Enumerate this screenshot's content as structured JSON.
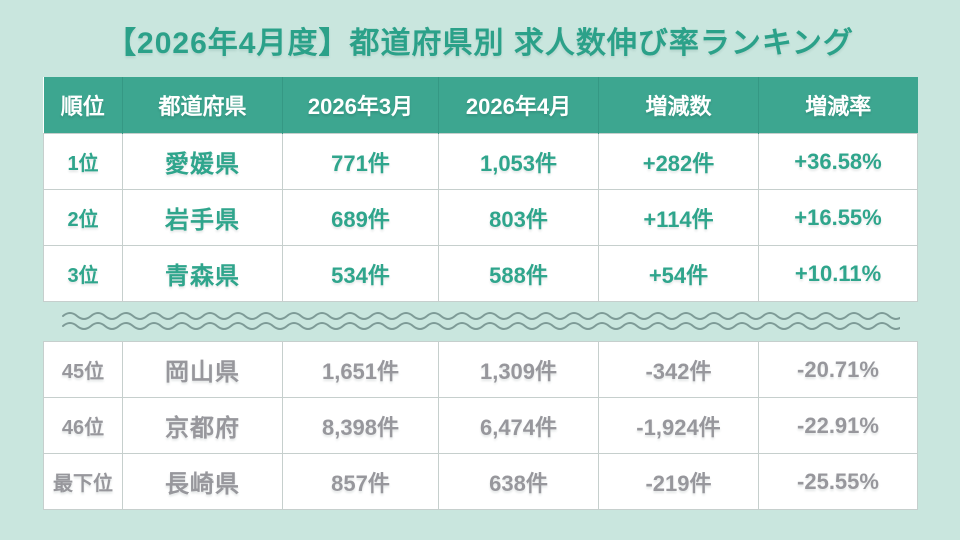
{
  "page": {
    "title": "【2026年4月度】都道府県別 求人数伸び率ランキング"
  },
  "colors": {
    "background": "#c9e6de",
    "header_bg": "#3da690",
    "header_text": "#ffffff",
    "top_rows_text": "#2fa58c",
    "bottom_rows_text": "#97979c",
    "cell_border": "#c6cfcd",
    "wave_divider": "#7e9b97",
    "title_text": "#2ba189"
  },
  "table": {
    "headers": {
      "rank": "順位",
      "pref": "都道府県",
      "mar": "2026年3月",
      "apr": "2026年4月",
      "diff": "増減数",
      "rate": "増減率"
    },
    "top_rows": [
      {
        "rank": "1位",
        "pref": "愛媛県",
        "mar": "771件",
        "apr": "1,053件",
        "diff": "+282件",
        "rate": "+36.58%"
      },
      {
        "rank": "2位",
        "pref": "岩手県",
        "mar": "689件",
        "apr": "803件",
        "diff": "+114件",
        "rate": "+16.55%"
      },
      {
        "rank": "3位",
        "pref": "青森県",
        "mar": "534件",
        "apr": "588件",
        "diff": "+54件",
        "rate": "+10.11%"
      }
    ],
    "bottom_rows": [
      {
        "rank": "45位",
        "pref": "岡山県",
        "mar": "1,651件",
        "apr": "1,309件",
        "diff": "-342件",
        "rate": "-20.71%"
      },
      {
        "rank": "46位",
        "pref": "京都府",
        "mar": "8,398件",
        "apr": "6,474件",
        "diff": "-1,924件",
        "rate": "-22.91%"
      },
      {
        "rank": "最下位",
        "pref": "長崎県",
        "mar": "857件",
        "apr": "638件",
        "diff": "-219件",
        "rate": "-25.55%"
      }
    ]
  },
  "chart_data": {
    "type": "table",
    "title": "【2026年4月度】都道府県別 求人数伸び率ランキング",
    "columns": [
      "順位",
      "都道府県",
      "2026年3月",
      "2026年4月",
      "増減数",
      "増減率"
    ],
    "rows": [
      [
        "1位",
        "愛媛県",
        "771件",
        "1,053件",
        "+282件",
        "+36.58%"
      ],
      [
        "2位",
        "岩手県",
        "689件",
        "803件",
        "+114件",
        "+16.55%"
      ],
      [
        "3位",
        "青森県",
        "534件",
        "588件",
        "+54件",
        "+10.11%"
      ],
      [
        "45位",
        "岡山県",
        "1,651件",
        "1,309件",
        "-342件",
        "-20.71%"
      ],
      [
        "46位",
        "京都府",
        "8,398件",
        "6,474件",
        "-1,924件",
        "-22.91%"
      ],
      [
        "最下位",
        "長崎県",
        "857件",
        "638件",
        "-219件",
        "-25.55%"
      ]
    ],
    "notes": "Rows 1-3 shown in teal (top of ranking), rows 45-47 shown in gray (bottom of ranking); middle ranks omitted, indicated by a double wavy divider."
  }
}
